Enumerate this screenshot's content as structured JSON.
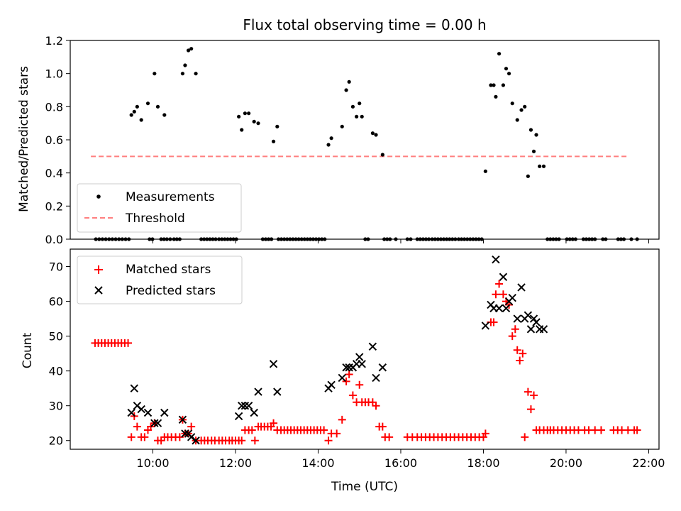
{
  "chart_data": [
    {
      "type": "scatter",
      "title": "Flux total observing time = 0.00 h",
      "xlabel": "",
      "ylabel": "Matched/Predicted stars",
      "xlim_hours": [
        8.0,
        22.25
      ],
      "ylim": [
        0,
        1.2
      ],
      "yticks": [
        0.0,
        0.2,
        0.4,
        0.6,
        0.8,
        1.0,
        1.2
      ],
      "ytick_labels": [
        "0.0",
        "0.2",
        "0.4",
        "0.6",
        "0.8",
        "1.0",
        "1.2"
      ],
      "legend_position": "lower-left",
      "threshold": {
        "name": "Threshold",
        "value": 0.5,
        "x_range": [
          8.5,
          21.5
        ],
        "color": "#ff7f7f"
      },
      "series": [
        {
          "name": "Measurements",
          "color": "#000000",
          "x": [
            9.48,
            9.55,
            9.62,
            9.72,
            9.88,
            10.04,
            10.12,
            10.28,
            10.72,
            10.78,
            10.86,
            10.93,
            11.04,
            12.08,
            12.15,
            12.23,
            12.32,
            12.45,
            12.55,
            12.92,
            13.01,
            14.25,
            14.32,
            14.58,
            14.68,
            14.75,
            14.84,
            14.93,
            15.0,
            15.06,
            15.32,
            15.4,
            15.56,
            18.05,
            18.18,
            18.25,
            18.3,
            18.38,
            18.48,
            18.55,
            18.62,
            18.7,
            18.82,
            18.92,
            19.0,
            19.08,
            19.15,
            19.22,
            19.28,
            19.36,
            19.46
          ],
          "y": [
            0.75,
            0.77,
            0.8,
            0.72,
            0.82,
            1.0,
            0.8,
            0.75,
            1.0,
            1.05,
            1.14,
            1.15,
            1.0,
            0.74,
            0.66,
            0.76,
            0.76,
            0.71,
            0.7,
            0.59,
            0.68,
            0.57,
            0.61,
            0.68,
            0.9,
            0.95,
            0.8,
            0.74,
            0.82,
            0.74,
            0.64,
            0.63,
            0.51,
            0.41,
            0.93,
            0.93,
            0.86,
            1.12,
            0.93,
            1.03,
            1.0,
            0.82,
            0.72,
            0.78,
            0.8,
            0.38,
            0.66,
            0.53,
            0.63,
            0.44,
            0.44
          ]
        }
      ],
      "zeros_x": [
        8.62,
        8.7,
        8.78,
        8.86,
        8.94,
        9.02,
        9.1,
        9.18,
        9.26,
        9.34,
        9.42,
        9.92,
        9.99,
        10.2,
        10.27,
        10.34,
        10.42,
        10.51,
        10.58,
        10.65,
        11.17,
        11.24,
        11.31,
        11.38,
        11.45,
        11.52,
        11.6,
        11.67,
        11.74,
        11.81,
        11.88,
        11.95,
        12.02,
        12.66,
        12.73,
        12.8,
        12.87,
        13.04,
        13.11,
        13.18,
        13.25,
        13.32,
        13.39,
        13.46,
        13.53,
        13.6,
        13.67,
        13.74,
        13.81,
        13.88,
        13.95,
        14.02,
        14.09,
        14.16,
        15.14,
        15.21,
        15.6,
        15.67,
        15.74,
        15.88,
        16.16,
        16.24,
        16.4,
        16.47,
        16.54,
        16.61,
        16.68,
        16.76,
        16.83,
        16.9,
        16.97,
        17.04,
        17.11,
        17.18,
        17.25,
        17.32,
        17.4,
        17.47,
        17.54,
        17.61,
        17.68,
        17.75,
        17.82,
        17.89,
        17.96,
        19.55,
        19.62,
        19.69,
        19.76,
        19.83,
        20.02,
        20.09,
        20.16,
        20.23,
        20.42,
        20.49,
        20.56,
        20.63,
        20.7,
        20.89,
        20.96,
        21.26,
        21.33,
        21.4,
        21.58,
        21.72
      ]
    },
    {
      "type": "scatter",
      "title": "",
      "xlabel": "Time (UTC)",
      "ylabel": "Count",
      "xlim_hours": [
        8.0,
        22.25
      ],
      "ylim": [
        17.5,
        75
      ],
      "yticks": [
        20,
        30,
        40,
        50,
        60,
        70
      ],
      "ytick_labels": [
        "20",
        "30",
        "40",
        "50",
        "60",
        "70"
      ],
      "xticks_hours": [
        10,
        12,
        14,
        16,
        18,
        20,
        22
      ],
      "xtick_labels": [
        "10:00",
        "12:00",
        "14:00",
        "16:00",
        "18:00",
        "20:00",
        "22:00"
      ],
      "legend_position": "upper-left",
      "series": [
        {
          "name": "Matched stars",
          "color": "#ff0000",
          "x": [
            8.6,
            8.68,
            8.76,
            8.84,
            8.92,
            9.0,
            9.08,
            9.16,
            9.24,
            9.32,
            9.4,
            9.48,
            9.55,
            9.62,
            9.72,
            9.8,
            9.88,
            9.95,
            10.04,
            10.12,
            10.2,
            10.28,
            10.36,
            10.45,
            10.55,
            10.65,
            10.72,
            10.78,
            10.86,
            10.93,
            11.04,
            11.17,
            11.25,
            11.33,
            11.42,
            11.5,
            11.6,
            11.68,
            11.76,
            11.85,
            11.92,
            12.0,
            12.08,
            12.15,
            12.23,
            12.32,
            12.4,
            12.47,
            12.55,
            12.62,
            12.7,
            12.78,
            12.86,
            12.92,
            13.01,
            13.1,
            13.18,
            13.26,
            13.34,
            13.42,
            13.5,
            13.58,
            13.66,
            13.74,
            13.82,
            13.9,
            13.98,
            14.06,
            14.14,
            14.25,
            14.32,
            14.45,
            14.58,
            14.68,
            14.75,
            14.84,
            14.93,
            15.0,
            15.06,
            15.14,
            15.22,
            15.32,
            15.4,
            15.48,
            15.56,
            15.62,
            15.72,
            16.16,
            16.28,
            16.4,
            16.5,
            16.6,
            16.7,
            16.8,
            16.9,
            17.0,
            17.1,
            17.2,
            17.3,
            17.4,
            17.5,
            17.6,
            17.7,
            17.8,
            17.9,
            18.0,
            18.05,
            18.18,
            18.25,
            18.3,
            18.38,
            18.48,
            18.55,
            18.62,
            18.7,
            18.77,
            18.82,
            18.88,
            18.95,
            19.0,
            19.08,
            19.15,
            19.22,
            19.28,
            19.36,
            19.46,
            19.55,
            19.62,
            19.7,
            19.8,
            19.9,
            20.0,
            20.1,
            20.2,
            20.3,
            20.45,
            20.55,
            20.7,
            20.85,
            21.15,
            21.25,
            21.35,
            21.5,
            21.65,
            21.72
          ],
          "y": [
            48,
            48,
            48,
            48,
            48,
            48,
            48,
            48,
            48,
            48,
            48,
            21,
            27,
            24,
            21,
            21,
            23,
            24,
            25,
            20,
            20,
            21,
            21,
            21,
            21,
            21,
            26,
            22,
            22,
            24,
            20,
            20,
            20,
            20,
            20,
            20,
            20,
            20,
            20,
            20,
            20,
            20,
            20,
            20,
            23,
            23,
            23,
            20,
            24,
            24,
            24,
            24,
            24,
            25,
            23,
            23,
            23,
            23,
            23,
            23,
            23,
            23,
            23,
            23,
            23,
            23,
            23,
            23,
            23,
            20,
            22,
            22,
            26,
            37,
            39,
            33,
            31,
            36,
            31,
            31,
            31,
            31,
            30,
            24,
            24,
            21,
            21,
            21,
            21,
            21,
            21,
            21,
            21,
            21,
            21,
            21,
            21,
            21,
            21,
            21,
            21,
            21,
            21,
            21,
            21,
            21,
            22,
            54,
            54,
            62,
            65,
            62,
            60,
            59,
            50,
            52,
            46,
            43,
            45,
            21,
            34,
            29,
            33,
            23,
            23,
            23,
            23,
            23,
            23,
            23,
            23,
            23,
            23,
            23,
            23,
            23,
            23,
            23,
            23,
            23,
            23,
            23,
            23,
            23,
            23
          ],
          "marker": "+"
        },
        {
          "name": "Predicted stars",
          "color": "#000000",
          "x": [
            9.48,
            9.55,
            9.62,
            9.72,
            9.88,
            10.04,
            10.12,
            10.28,
            10.72,
            10.78,
            10.86,
            10.93,
            11.04,
            12.08,
            12.15,
            12.23,
            12.32,
            12.45,
            12.55,
            12.92,
            13.01,
            14.25,
            14.32,
            14.58,
            14.68,
            14.75,
            14.84,
            14.93,
            15.0,
            15.06,
            15.32,
            15.4,
            15.56,
            18.05,
            18.18,
            18.25,
            18.3,
            18.38,
            18.48,
            18.55,
            18.62,
            18.7,
            18.82,
            18.92,
            19.0,
            19.08,
            19.15,
            19.22,
            19.28,
            19.36,
            19.46
          ],
          "y": [
            28,
            35,
            30,
            29,
            28,
            25,
            25,
            28,
            26,
            22,
            22,
            21,
            20,
            27,
            30,
            30,
            30,
            28,
            34,
            42,
            34,
            35,
            36,
            38,
            41,
            41,
            41,
            42,
            44,
            42,
            47,
            38,
            41,
            53,
            59,
            58,
            72,
            58,
            67,
            58,
            60,
            61,
            55,
            64,
            55,
            56,
            52,
            55,
            54,
            52,
            52
          ],
          "marker": "x"
        }
      ]
    }
  ]
}
